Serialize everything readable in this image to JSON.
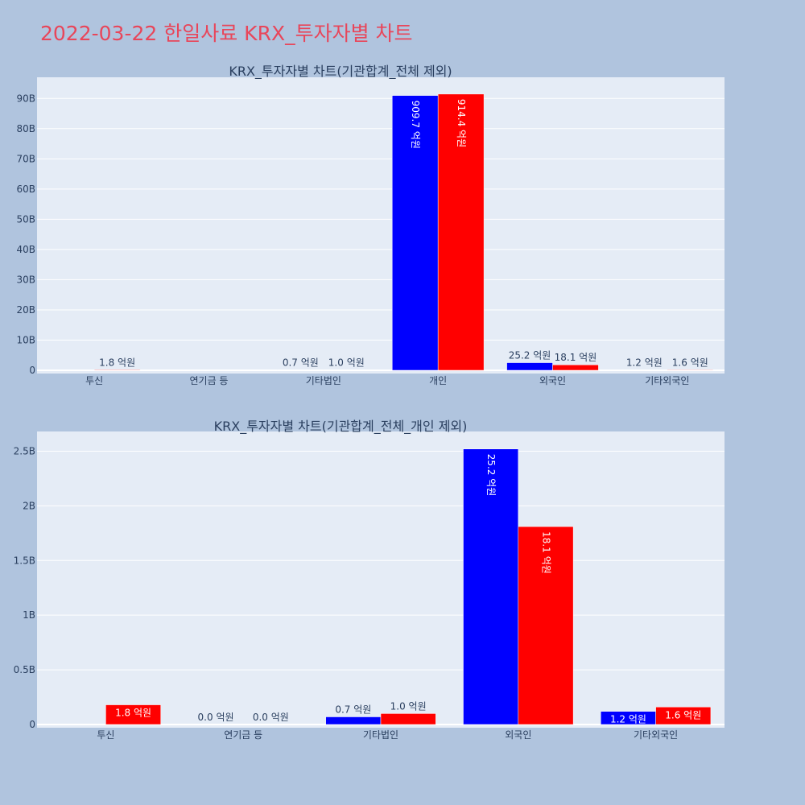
{
  "page_title": "2022-03-22 한일사료 KRX_투자자별 차트",
  "colors": {
    "buy": "#0000ff",
    "sell": "#ff0000",
    "plot_bg": "#e5ecf6",
    "page_bg": "#b0c4de",
    "text": "#2a3f5f"
  },
  "chart_data": [
    {
      "type": "bar",
      "title": "KRX_투자자별 차트(기관합계_전체 제외)",
      "categories": [
        "투신",
        "연기금 등",
        "기타법인",
        "개인",
        "외국인",
        "기타외국인"
      ],
      "ylim": [
        0,
        97
      ],
      "yticks": [
        0,
        10,
        20,
        30,
        40,
        50,
        60,
        70,
        80,
        90
      ],
      "ytick_labels": [
        "0",
        "10B",
        "20B",
        "30B",
        "40B",
        "50B",
        "60B",
        "70B",
        "80B",
        "90B"
      ],
      "grid": true,
      "series": [
        {
          "values": [
            null,
            null,
            0.07,
            90.97,
            2.52,
            0.12
          ],
          "labels": [
            "",
            "",
            "0.7 억원",
            "909.7 억원",
            "25.2 억원",
            "1.2 억원"
          ]
        },
        {
          "values": [
            0.18,
            null,
            0.1,
            91.44,
            1.81,
            0.16
          ],
          "labels": [
            "1.8 억원",
            "",
            "1.0 억원",
            "914.4 억원",
            "18.1 억원",
            "1.6 억원"
          ]
        }
      ]
    },
    {
      "type": "bar",
      "title": "KRX_투자자별 차트(기관합계_전체_개인 제외)",
      "categories": [
        "투신",
        "연기금 등",
        "기타법인",
        "외국인",
        "기타외국인"
      ],
      "ylim": [
        0,
        2.68
      ],
      "yticks": [
        0,
        0.5,
        1,
        1.5,
        2,
        2.5
      ],
      "ytick_labels": [
        "0",
        "0.5B",
        "1B",
        "1.5B",
        "2B",
        "2.5B"
      ],
      "grid": true,
      "series": [
        {
          "values": [
            null,
            0,
            0.07,
            2.52,
            0.12
          ],
          "labels": [
            "",
            "0.0 억원",
            "0.7 억원",
            "25.2 억원",
            "1.2 억원"
          ]
        },
        {
          "values": [
            0.18,
            0,
            0.1,
            1.81,
            0.16
          ],
          "labels": [
            "1.8 억원",
            "0.0 억원",
            "1.0 억원",
            "18.1 억원",
            "1.6 억원"
          ]
        }
      ]
    }
  ]
}
